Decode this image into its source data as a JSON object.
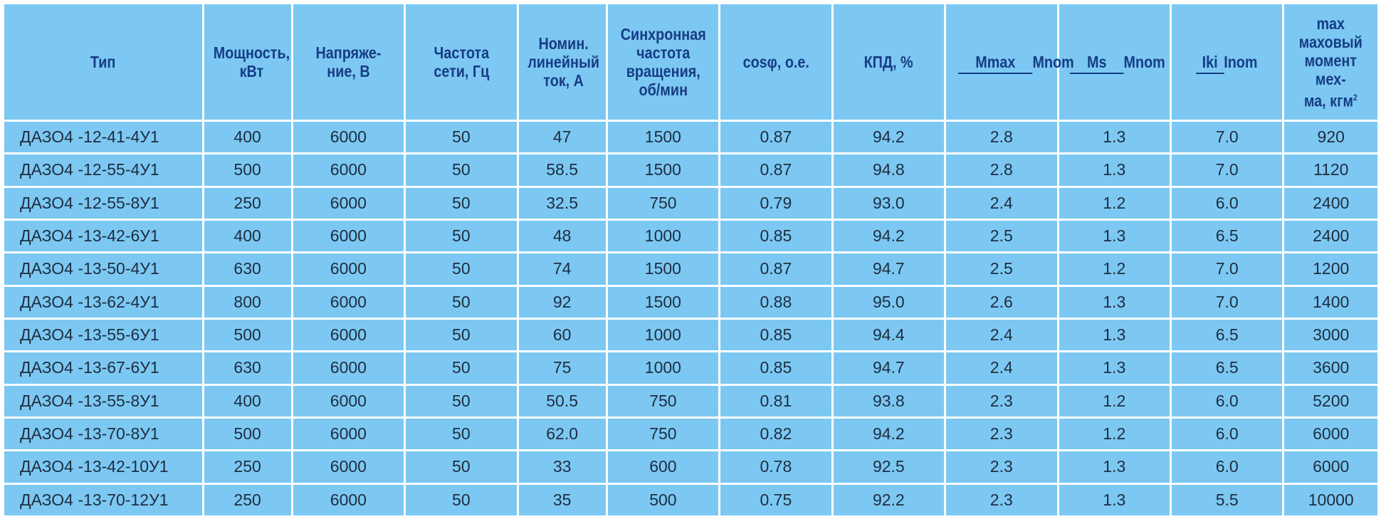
{
  "header": {
    "type": "Тип",
    "power": [
      "Мощность,",
      "кВт"
    ],
    "voltage": [
      "Напряже-",
      "ние, В"
    ],
    "freq": [
      "Частота",
      "сети, Гц"
    ],
    "current": [
      "Номин.",
      "линейный",
      "ток, А"
    ],
    "speed": [
      "Синхронная",
      "частота",
      "вращения,",
      "об/мин"
    ],
    "cos": "cosφ, о.е.",
    "eff": "КПД, %",
    "mmax": {
      "num": "Mmax",
      "den": "Mnom"
    },
    "ms": {
      "num": "Ms",
      "den": "Mnom"
    },
    "iki": {
      "num": "Iki",
      "den": "Inom"
    },
    "inertia": [
      "max маховый",
      "момент мех-",
      "ма, кгм"
    ],
    "inertia_sup": "2"
  },
  "rows": [
    [
      "ДАЗО4 -12-41-4У1",
      "400",
      "6000",
      "50",
      "47",
      "1500",
      "0.87",
      "94.2",
      "2.8",
      "1.3",
      "7.0",
      "920"
    ],
    [
      "ДАЗО4 -12-55-4У1",
      "500",
      "6000",
      "50",
      "58.5",
      "1500",
      "0.87",
      "94.8",
      "2.8",
      "1.3",
      "7.0",
      "1120"
    ],
    [
      "ДАЗО4 -12-55-8У1",
      "250",
      "6000",
      "50",
      "32.5",
      "750",
      "0.79",
      "93.0",
      "2.4",
      "1.2",
      "6.0",
      "2400"
    ],
    [
      "ДАЗО4 -13-42-6У1",
      "400",
      "6000",
      "50",
      "48",
      "1000",
      "0.85",
      "94.2",
      "2.5",
      "1.3",
      "6.5",
      "2400"
    ],
    [
      "ДАЗО4 -13-50-4У1",
      "630",
      "6000",
      "50",
      "74",
      "1500",
      "0.87",
      "94.7",
      "2.5",
      "1.2",
      "7.0",
      "1200"
    ],
    [
      "ДАЗО4 -13-62-4У1",
      "800",
      "6000",
      "50",
      "92",
      "1500",
      "0.88",
      "95.0",
      "2.6",
      "1.3",
      "7.0",
      "1400"
    ],
    [
      "ДАЗО4 -13-55-6У1",
      "500",
      "6000",
      "50",
      "60",
      "1000",
      "0.85",
      "94.4",
      "2.4",
      "1.3",
      "6.5",
      "3000"
    ],
    [
      "ДАЗО4 -13-67-6У1",
      "630",
      "6000",
      "50",
      "75",
      "1000",
      "0.85",
      "94.7",
      "2.4",
      "1.3",
      "6.5",
      "3600"
    ],
    [
      "ДАЗО4 -13-55-8У1",
      "400",
      "6000",
      "50",
      "50.5",
      "750",
      "0.81",
      "93.8",
      "2.3",
      "1.2",
      "6.0",
      "5200"
    ],
    [
      "ДАЗО4 -13-70-8У1",
      "500",
      "6000",
      "50",
      "62.0",
      "750",
      "0.82",
      "94.2",
      "2.3",
      "1.2",
      "6.0",
      "6000"
    ],
    [
      "ДАЗО4 -13-42-10У1",
      "250",
      "6000",
      "50",
      "33",
      "600",
      "0.78",
      "92.5",
      "2.3",
      "1.3",
      "6.0",
      "6000"
    ],
    [
      "ДАЗО4 -13-70-12У1",
      "250",
      "6000",
      "50",
      "35",
      "500",
      "0.75",
      "92.2",
      "2.3",
      "1.3",
      "5.5",
      "10000"
    ]
  ]
}
